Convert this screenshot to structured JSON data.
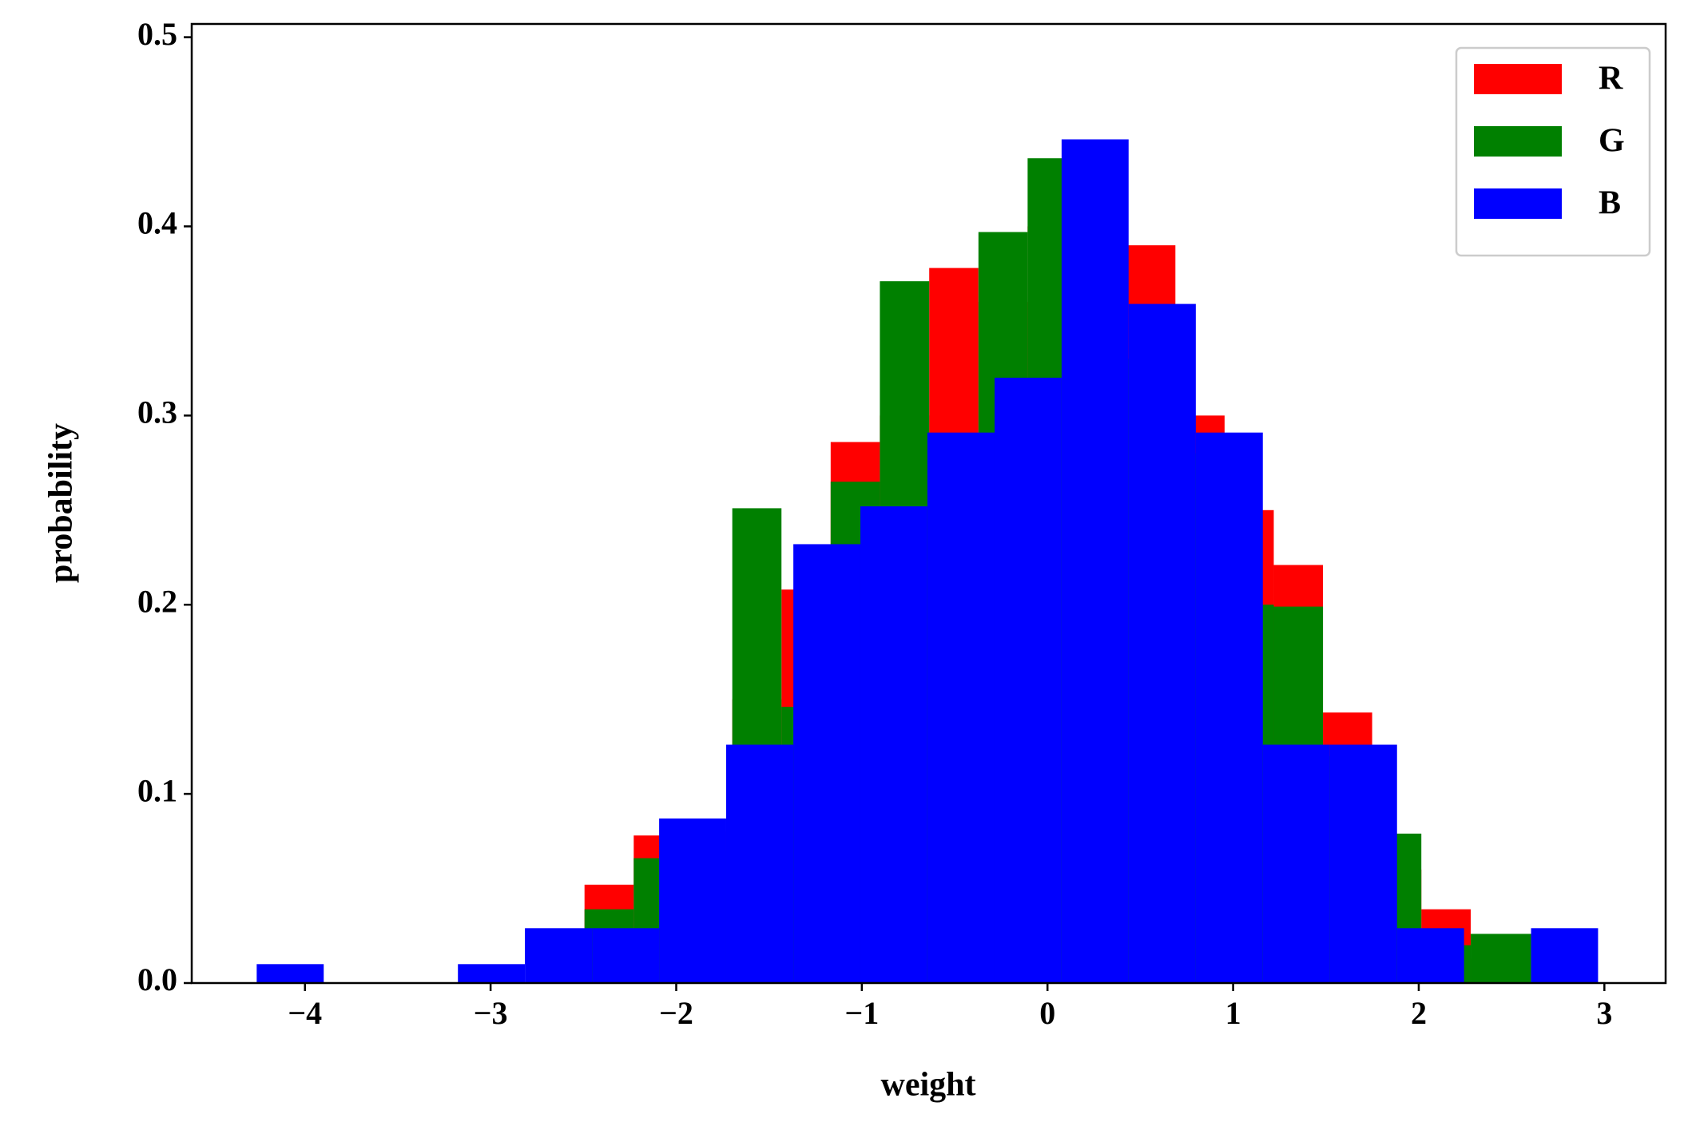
{
  "chart_data": {
    "type": "histogram",
    "x_label": "weight",
    "y_label": "probability",
    "xlim": [
      -4.61,
      3.33
    ],
    "ylim": [
      0,
      0.507
    ],
    "xticks": [
      {
        "value": -4,
        "label": "−4"
      },
      {
        "value": -3,
        "label": "−3"
      },
      {
        "value": -2,
        "label": "−2"
      },
      {
        "value": -1,
        "label": "−1"
      },
      0,
      1,
      2,
      3
    ],
    "yticks": [
      {
        "value": 0,
        "label": "0.0"
      },
      0.1,
      0.2,
      0.3,
      0.4,
      0.5
    ],
    "legend": "upper right",
    "series": [
      {
        "name": "R",
        "color": "#ff0000",
        "bins": [
          -2.494,
          -2.229,
          -1.963,
          -1.698,
          -1.433,
          -1.168,
          -0.903,
          -0.637,
          -0.372,
          -0.107,
          0.158,
          0.423,
          0.689,
          0.954,
          1.219,
          1.484,
          1.749,
          2.014,
          2.28,
          2.545
        ],
        "values": [
          0.052,
          0.078,
          0.08,
          0.15,
          0.208,
          0.286,
          0.3,
          0.378,
          0.36,
          0.4,
          0.42,
          0.39,
          0.3,
          0.25,
          0.221,
          0.143,
          0.06,
          0.039,
          0.013
        ]
      },
      {
        "name": "G",
        "color": "#008000",
        "bins": [
          -2.494,
          -2.229,
          -1.963,
          -1.698,
          -1.433,
          -1.168,
          -0.903,
          -0.637,
          -0.372,
          -0.107,
          0.158,
          0.423,
          0.689,
          0.954,
          1.219,
          1.484,
          1.749,
          2.014,
          2.28,
          2.605
        ],
        "values": [
          0.039,
          0.066,
          0.07,
          0.251,
          0.146,
          0.265,
          0.371,
          0.29,
          0.397,
          0.436,
          0.38,
          0.33,
          0.28,
          0.2,
          0.199,
          0.12,
          0.079,
          0.02,
          0.026
        ]
      },
      {
        "name": "B",
        "color": "#0000ff",
        "bins": [
          -4.26,
          -3.899,
          -3.537,
          -3.176,
          -2.815,
          -2.453,
          -2.092,
          -1.731,
          -1.369,
          -1.008,
          -0.647,
          -0.285,
          0.076,
          0.437,
          0.799,
          1.16,
          1.521,
          1.883,
          2.244,
          2.605,
          2.966
        ],
        "values": [
          0.01,
          0,
          0,
          0.01,
          0.029,
          0.029,
          0.087,
          0.126,
          0.232,
          0.252,
          0.291,
          0.32,
          0.446,
          0.359,
          0.291,
          0.126,
          0.126,
          0.029,
          0,
          0.029
        ]
      }
    ]
  }
}
